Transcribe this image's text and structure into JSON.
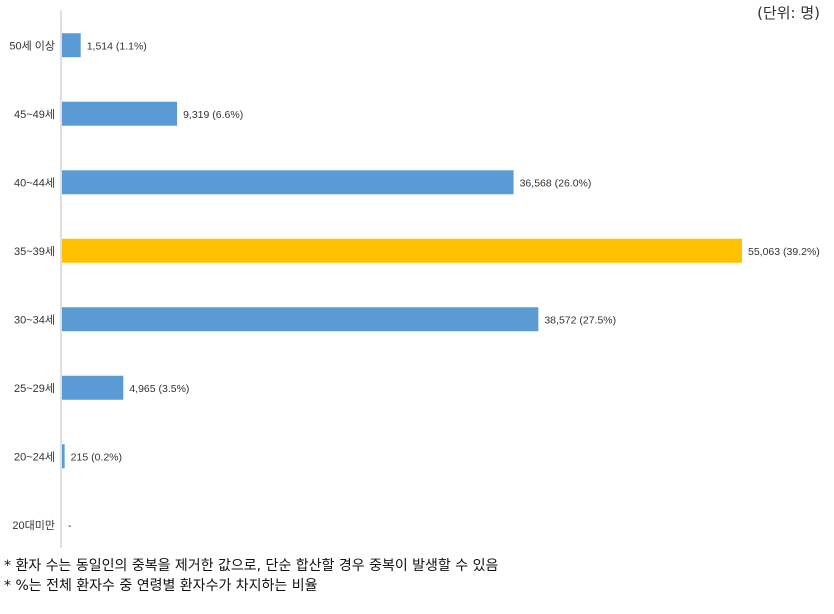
{
  "unit_label": "(단위: 명)",
  "chart_data": {
    "type": "bar",
    "orientation": "horizontal",
    "categories": [
      "50세 이상",
      "45~49세",
      "40~44세",
      "35~39세",
      "30~34세",
      "25~29세",
      "20~24세",
      "20대미만"
    ],
    "values": [
      1514,
      9319,
      36568,
      55063,
      38572,
      4965,
      215,
      null
    ],
    "data_labels": [
      "1,514 (1.1%)",
      "9,319 (6.6%)",
      "36,568 (26.0%)",
      "55,063 (39.2%)",
      "38,572 (27.5%)",
      "4,965 (3.5%)",
      "215 (0.2%)",
      "-"
    ],
    "colors": [
      "#5B9BD5",
      "#5B9BD5",
      "#5B9BD5",
      "#FFC000",
      "#5B9BD5",
      "#5B9BD5",
      "#5B9BD5",
      "#5B9BD5"
    ],
    "highlight_category": "35~39세",
    "xlim": [
      0,
      55063
    ],
    "grid": false,
    "legend": "none"
  },
  "notes": [
    "* 환자 수는 동일인의 중복을 제거한 값으로, 단순 합산할 경우 중복이 발생할 수 있음",
    "* %는 전체 환자수 중 연령별 환자수가 차지하는 비율"
  ]
}
